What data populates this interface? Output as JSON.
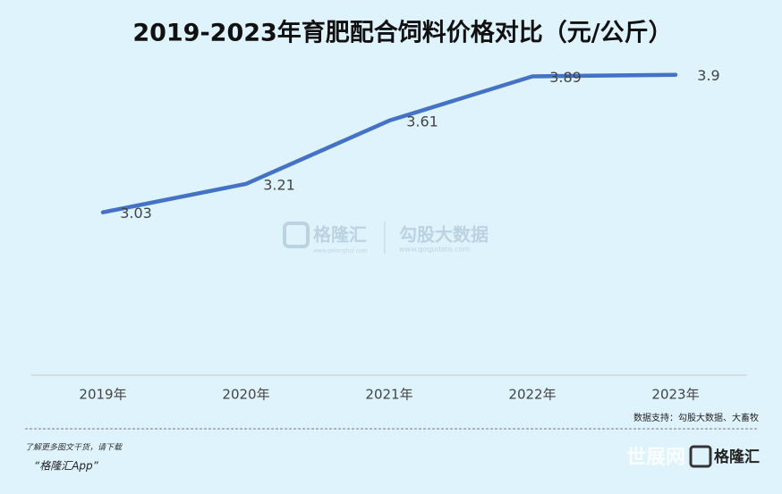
{
  "chart_data": {
    "type": "line",
    "title": "2019-2023年育肥配合饲料价格对比（元/公斤）",
    "categories": [
      "2019年",
      "2020年",
      "2021年",
      "2022年",
      "2023年"
    ],
    "values": [
      3.03,
      3.21,
      3.61,
      3.89,
      3.9
    ],
    "color": "#4472c4",
    "ylim": [
      2,
      4
    ],
    "grid": false,
    "source": "数据支持：勾股大数据、大畜牧",
    "footer_note": "了解更多图文干货，请下载",
    "footer_app": "“格隆汇App”",
    "watermark_left": "格隆汇",
    "watermark_left_url": "www.gelonghui.com",
    "watermark_right": "勾股大数据",
    "watermark_right_url": "www.gogudata.com",
    "corner_mark": "世展网",
    "corner_logo": "格隆汇"
  }
}
